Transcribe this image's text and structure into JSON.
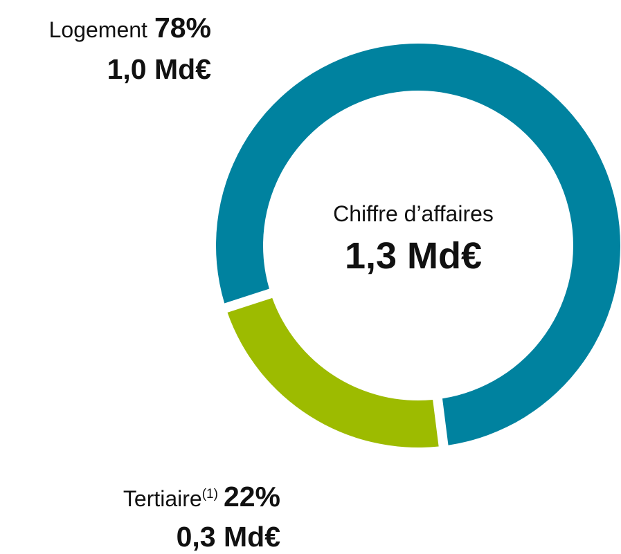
{
  "chart_data": {
    "type": "pie",
    "categories": [
      "Logement",
      "Tertiaire"
    ],
    "category_footnotes": [
      null,
      "(1)"
    ],
    "values": [
      78,
      22
    ],
    "value_labels": [
      "78%",
      "22%"
    ],
    "amounts": [
      "1,0 Md€",
      "0,3 Md€"
    ],
    "colors": [
      "#00829f",
      "#9dbb00"
    ],
    "center_label": "Chiffre d’affaires",
    "center_value": "1,3 Md€"
  }
}
